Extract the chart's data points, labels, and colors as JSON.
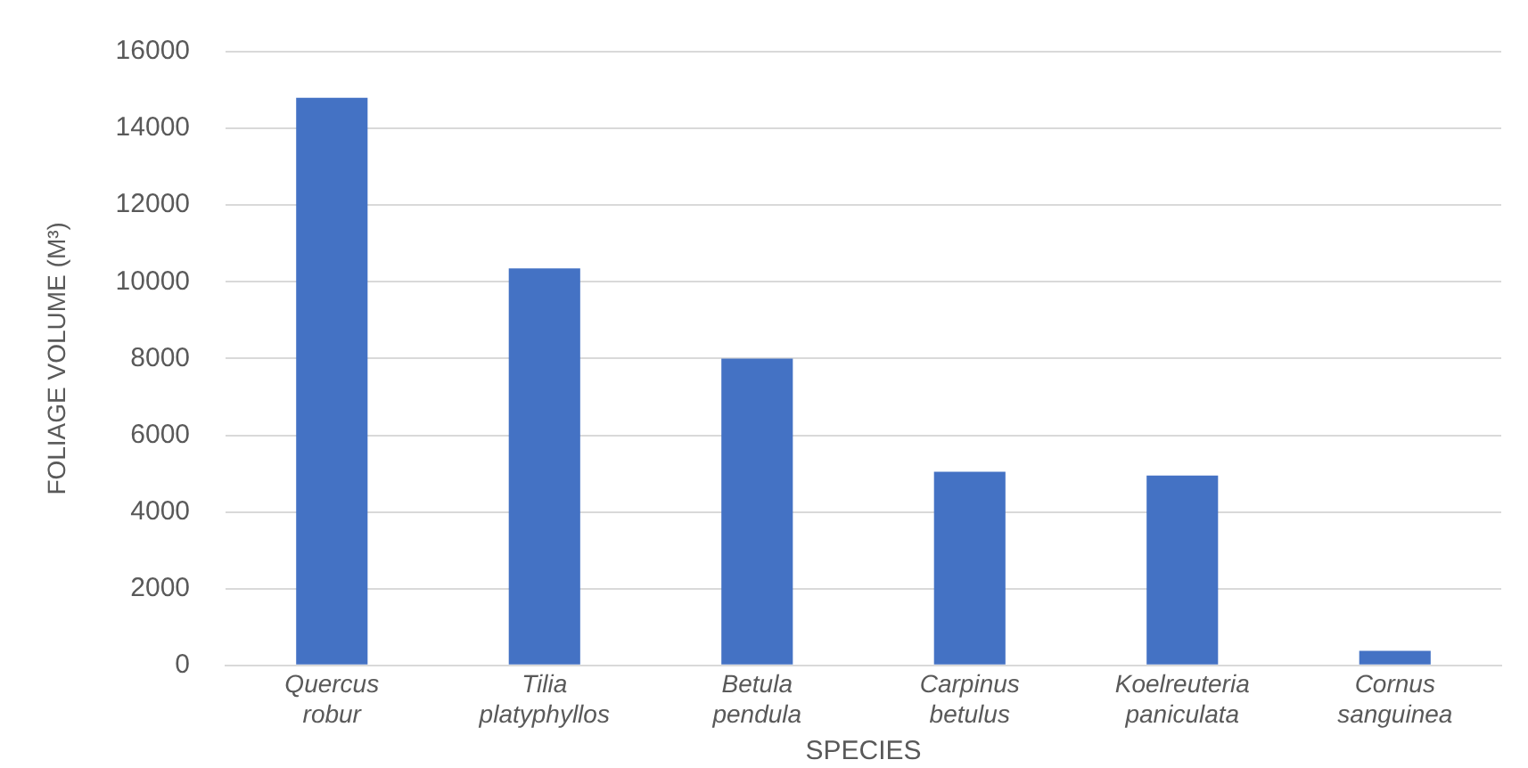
{
  "chart_data": {
    "type": "bar",
    "xlabel": "SPECIES",
    "ylabel": "FOLIAGE VOLUME (M³)",
    "categories": [
      "Quercus robur",
      "Tilia platyphyllos",
      "Betula pendula",
      "Carpinus betulus",
      "Koelreuteria paniculata",
      "Cornus sanguinea"
    ],
    "values": [
      14800,
      10350,
      8000,
      5050,
      4950,
      380
    ],
    "color": "#4472c4",
    "ylim": [
      0,
      16000
    ],
    "yticks": [
      0,
      2000,
      4000,
      6000,
      8000,
      10000,
      12000,
      14000,
      16000
    ],
    "grid": "y"
  }
}
